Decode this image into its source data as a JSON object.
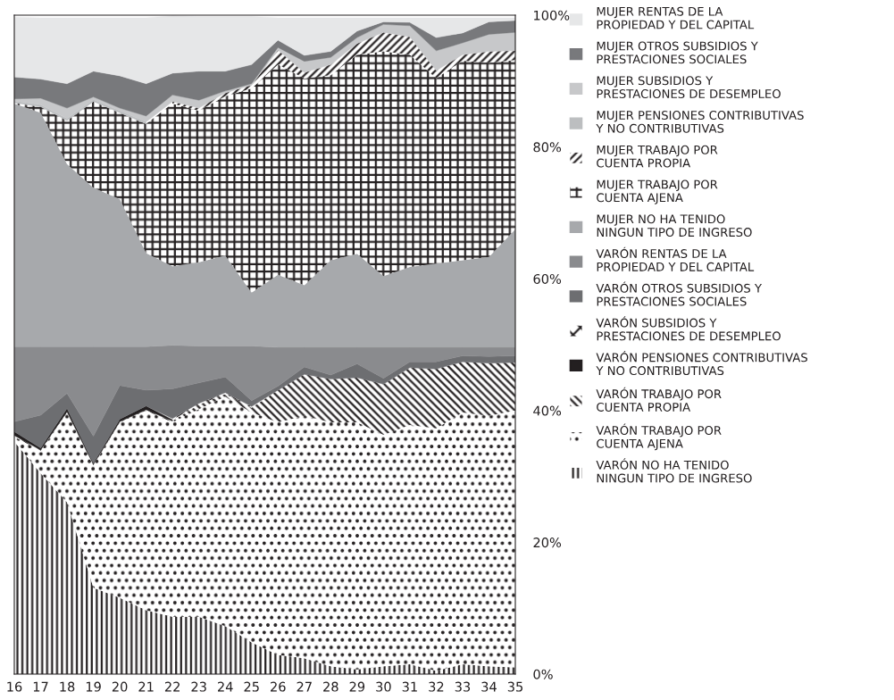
{
  "chart_data": {
    "type": "area",
    "stacked": true,
    "x": [
      16,
      17,
      18,
      19,
      20,
      21,
      22,
      23,
      24,
      25,
      26,
      27,
      28,
      29,
      30,
      31,
      32,
      33,
      34,
      35
    ],
    "xlim": [
      16,
      35
    ],
    "xticks": [
      16,
      17,
      18,
      19,
      20,
      21,
      22,
      23,
      24,
      25,
      26,
      27,
      28,
      29,
      30,
      31,
      32,
      33,
      34,
      35
    ],
    "ylim": [
      0,
      100
    ],
    "yticks": [
      {
        "value": 0,
        "label": "0%"
      },
      {
        "value": 20,
        "label": "20%"
      },
      {
        "value": 40,
        "label": "40%"
      },
      {
        "value": 60,
        "label": "60%"
      },
      {
        "value": 80,
        "label": "80%"
      },
      {
        "value": 100,
        "label": "100%"
      }
    ],
    "grid": false,
    "legend": "right",
    "series": [
      {
        "name": "VARÓN NO HA TENIDO\nNINGUN TIPO DE INGRESO",
        "color": "#231f20",
        "values": [
          35.3,
          30.5,
          26.1,
          13.1,
          11.6,
          9.7,
          8.7,
          8.7,
          7.3,
          4.8,
          2.9,
          2.4,
          1.2,
          0.7,
          1.2,
          1.5,
          0.5,
          1.5,
          1.2,
          1.0
        ]
      },
      {
        "name": "VARÓN TRABAJO POR\nCUENTA AJENA",
        "color": "#231f20",
        "values": [
          0.7,
          3.4,
          13.6,
          18.6,
          26.6,
          30.3,
          29.5,
          31.5,
          34.8,
          34.9,
          35.3,
          36.8,
          37.0,
          37.5,
          35.1,
          36.3,
          36.8,
          38.2,
          38.0,
          39.0
        ]
      },
      {
        "name": "VARÓN TRABAJO POR\nCUENTA PROPIA",
        "color": "#231f20",
        "values": [
          0.2,
          0.1,
          0.1,
          0.1,
          0.1,
          0.1,
          0.2,
          0.7,
          0.4,
          0.7,
          4.9,
          6.3,
          6.6,
          6.8,
          7.7,
          8.7,
          9.0,
          7.7,
          8.0,
          7.3
        ]
      },
      {
        "name": "VARÓN PENSIONES CONTRIBUTIVAS\nY NO CONTRIBUTIVAS",
        "color": "#231f20",
        "values": [
          0.6,
          0.3,
          0.5,
          0.2,
          0.4,
          0.6,
          0.2,
          null,
          null,
          null,
          null,
          null,
          null,
          null,
          null,
          null,
          null,
          null,
          null,
          null
        ]
      },
      {
        "name": "VARÓN SUBSIDIOS Y\nPRESTACIONES DE DESEMPLEO",
        "color": "#231f20",
        "values": [
          null,
          null,
          null,
          null,
          null,
          null,
          0.2,
          0.2,
          0.2,
          0.2,
          null,
          null,
          null,
          null,
          null,
          null,
          null,
          null,
          null,
          null
        ]
      },
      {
        "name": "VARÓN OTROS SUBSIDIOS Y\nPRESTACIONES SOCIALES",
        "color": "#6d6e71",
        "values": [
          1.5,
          5.0,
          2.3,
          4.1,
          5.1,
          2.4,
          4.5,
          3.1,
          2.4,
          0.9,
          0.6,
          1.1,
          0.6,
          2.1,
          0.9,
          0.9,
          1.1,
          0.9,
          1.0,
          1.0
        ]
      },
      {
        "name": "VARÓN RENTAS DE LA\nPROPIEDAD Y DEL CAPITAL",
        "color": "#8a8b8e",
        "values": [
          11.4,
          10.4,
          7.1,
          13.6,
          5.9,
          6.6,
          6.6,
          5.6,
          4.7,
          8.3,
          5.9,
          3.0,
          4.2,
          2.5,
          4.7,
          2.2,
          2.2,
          1.3,
          1.4,
          1.3
        ]
      },
      {
        "name": "MUJER NO HA TENIDO\nNINGUN TIPO DE INGRESO",
        "color": "#a7a9ac",
        "values": [
          36.9,
          35.5,
          27.7,
          24.1,
          22.4,
          14.2,
          12.0,
          12.7,
          13.7,
          8.1,
          11.0,
          9.4,
          13.2,
          14.2,
          10.8,
          12.2,
          12.7,
          13.2,
          13.7,
          17.9
        ]
      },
      {
        "name": "MUJER TRABAJO POR\nCUENTA AJENA",
        "color": "#231f20",
        "values": [
          0.1,
          0.9,
          6.6,
          13.1,
          13.1,
          19.6,
          24.7,
          23.0,
          24.2,
          31.0,
          31.9,
          31.4,
          28.1,
          30.2,
          34.1,
          32.2,
          28.1,
          30.3,
          29.5,
          25.7
        ]
      },
      {
        "name": "MUJER TRABAJO POR\nCUENTA PROPIA",
        "color": "#231f20",
        "values": [
          null,
          null,
          null,
          null,
          null,
          null,
          0.3,
          0.4,
          0.5,
          0.5,
          2.2,
          0.9,
          1.6,
          1.7,
          2.9,
          2.7,
          1.2,
          0.9,
          1.7,
          1.4
        ]
      },
      {
        "name": "MUJER PENSIONES CONTRIBUTIVAS\nY NO CONTRIBUTIVAS",
        "color": "#bcbec0",
        "values": [
          0.3,
          0.3,
          0.3,
          0.3,
          0.3,
          0.3,
          null,
          null,
          null,
          null,
          null,
          null,
          null,
          null,
          null,
          null,
          null,
          null,
          null,
          null
        ]
      },
      {
        "name": "MUJER SUBSIDIOS Y\nPRESTACIONES DE DESEMPLEO",
        "color": "#c7c8ca",
        "values": [
          0.3,
          1.0,
          1.6,
          0.4,
          0.4,
          0.9,
          1.0,
          1.2,
          0.3,
          0.2,
          0.4,
          1.7,
          1.1,
          0.9,
          1.2,
          1.7,
          3.0,
          1.8,
          2.6,
          2.8
        ]
      },
      {
        "name": "MUJER OTROS SUBSIDIOS Y\nPRESTACIONES SOCIALES",
        "color": "#78797c",
        "values": [
          3.3,
          2.9,
          3.7,
          3.9,
          4.9,
          4.9,
          3.3,
          4.4,
          3.0,
          2.9,
          1.1,
          0.9,
          0.9,
          1.0,
          0.4,
          0.5,
          2.0,
          1.5,
          1.9,
          1.8
        ]
      },
      {
        "name": "MUJER RENTAS DE LA\nPROPIEDAD Y DEL CAPITAL",
        "color": "#e6e7e8",
        "values": [
          9.1,
          9.3,
          10.0,
          8.1,
          8.8,
          10.0,
          8.7,
          8.3,
          8.3,
          7.3,
          3.4,
          5.7,
          5.1,
          2.0,
          0.6,
          0.7,
          3.0,
          2.3,
          0.6,
          0.4
        ]
      }
    ]
  }
}
